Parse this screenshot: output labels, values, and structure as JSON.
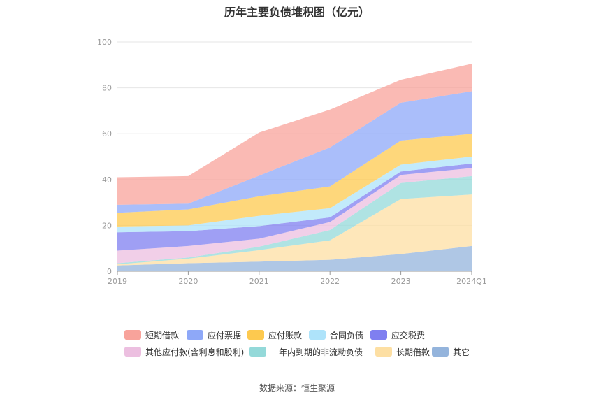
{
  "title": "历年主要负债堆积图（亿元）",
  "source": "数据来源：恒生聚源",
  "chart_data": {
    "type": "area",
    "stacked": true,
    "title": "历年主要负债堆积图（亿元）",
    "categories": [
      "2019",
      "2020",
      "2021",
      "2022",
      "2023",
      "2024Q1"
    ],
    "ylim": [
      0,
      100
    ],
    "yticks": [
      0,
      20,
      40,
      60,
      80,
      100
    ],
    "grid": true,
    "legend_position": "bottom",
    "series": [
      {
        "name": "其它",
        "color": "#94b4dc",
        "values": [
          2.5,
          3.5,
          4.2,
          5.0,
          7.5,
          11.0
        ]
      },
      {
        "name": "长期借款",
        "color": "#fddfa3",
        "values": [
          0.5,
          2.0,
          5.0,
          8.5,
          24.0,
          22.5
        ]
      },
      {
        "name": "一年内到期的非流动负债",
        "color": "#94d9d9",
        "values": [
          0.5,
          0.5,
          1.5,
          4.5,
          7.0,
          8.0
        ]
      },
      {
        "name": "其他应付款(含利息和股利)",
        "color": "#ecbfe0",
        "values": [
          5.5,
          5.0,
          3.5,
          3.5,
          3.5,
          3.5
        ]
      },
      {
        "name": "应交税费",
        "color": "#7f7ff0",
        "values": [
          8.0,
          6.5,
          5.5,
          2.0,
          1.5,
          2.0
        ]
      },
      {
        "name": "合同负债",
        "color": "#aee3fa",
        "values": [
          2.5,
          2.5,
          4.5,
          4.0,
          3.0,
          3.0
        ]
      },
      {
        "name": "应付账款",
        "color": "#fdc94f",
        "values": [
          6.0,
          7.0,
          8.5,
          9.5,
          10.5,
          10.0
        ]
      },
      {
        "name": "应付票据",
        "color": "#8ea8f8",
        "values": [
          3.5,
          2.5,
          9.0,
          17.0,
          16.5,
          18.5
        ]
      },
      {
        "name": "短期借款",
        "color": "#f8a39b",
        "values": [
          12.0,
          12.0,
          18.8,
          16.5,
          10.0,
          12.0
        ]
      }
    ]
  },
  "legend_rows": [
    [
      {
        "label": "短期借款",
        "color": "#f8a39b"
      },
      {
        "label": "应付票据",
        "color": "#8ea8f8"
      },
      {
        "label": "应付账款",
        "color": "#fdc94f"
      },
      {
        "label": "合同负债",
        "color": "#aee3fa"
      },
      {
        "label": "应交税费",
        "color": "#7f7ff0"
      }
    ],
    [
      {
        "label": "其他应付款(含利息和股利)",
        "color": "#ecbfe0"
      },
      {
        "label": "一年内到期的非流动负债",
        "color": "#94d9d9"
      },
      {
        "label": "长期借款",
        "color": "#fddfa3"
      },
      {
        "label": "其它",
        "color": "#94b4dc"
      }
    ]
  ]
}
